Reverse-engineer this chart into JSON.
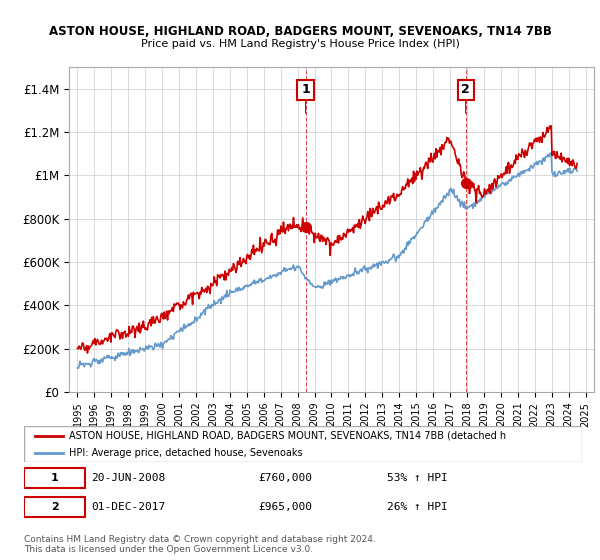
{
  "title1": "ASTON HOUSE, HIGHLAND ROAD, BADGERS MOUNT, SEVENOAKS, TN14 7BB",
  "title2": "Price paid vs. HM Land Registry's House Price Index (HPI)",
  "ylabel": "",
  "yticks": [
    0,
    200000,
    400000,
    600000,
    800000,
    1000000,
    1200000,
    1400000
  ],
  "ytick_labels": [
    "£0",
    "£200K",
    "£400K",
    "£600K",
    "£800K",
    "£1M",
    "£1.2M",
    "£1.4M"
  ],
  "xlim_start": 1994.5,
  "xlim_end": 2025.5,
  "ylim_min": 0,
  "ylim_max": 1500000,
  "red_color": "#cc0000",
  "blue_color": "#6699cc",
  "marker1_x": 2008.47,
  "marker1_y": 760000,
  "marker2_x": 2017.92,
  "marker2_y": 965000,
  "marker1_label": "1",
  "marker2_label": "2",
  "vline1_x": 2008.47,
  "vline2_x": 2017.92,
  "legend_line1": "ASTON HOUSE, HIGHLAND ROAD, BADGERS MOUNT, SEVENOAKS, TN14 7BB (detached h",
  "legend_line2": "HPI: Average price, detached house, Sevenoaks",
  "table_row1": [
    "1",
    "20-JUN-2008",
    "£760,000",
    "53% ↑ HPI"
  ],
  "table_row2": [
    "2",
    "01-DEC-2017",
    "£965,000",
    "26% ↑ HPI"
  ],
  "footnote": "Contains HM Land Registry data © Crown copyright and database right 2024.\nThis data is licensed under the Open Government Licence v3.0.",
  "background_color": "#ffffff",
  "grid_color": "#cccccc"
}
